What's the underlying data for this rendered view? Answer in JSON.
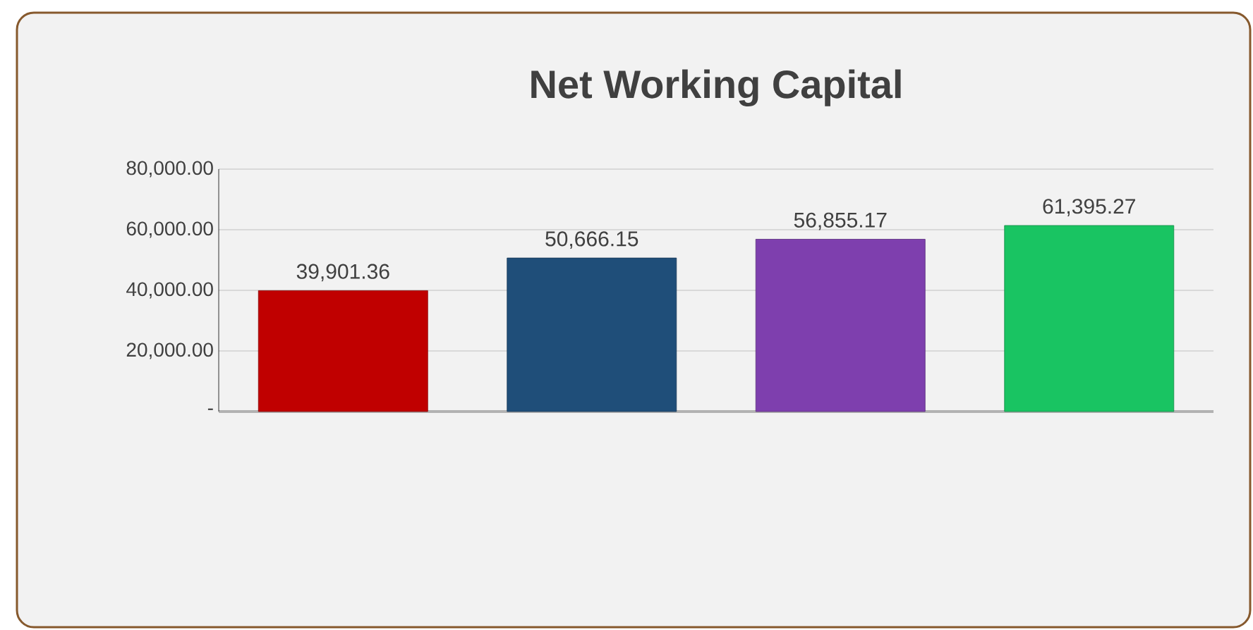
{
  "chart_data": {
    "type": "bar",
    "title": "Net Working Capital",
    "categories": [
      null,
      null,
      null,
      null
    ],
    "values": [
      39901.36,
      50666.15,
      56855.17,
      61395.27
    ],
    "colors": [
      "#c00000",
      "#1f4e79",
      "#7e3fae",
      "#19c462"
    ],
    "value_labels": [
      "39,901.36",
      "50,666.15",
      "56,855.17",
      "61,395.27"
    ],
    "ylim": [
      0,
      80000
    ],
    "yticks": [
      {
        "value": 0,
        "label": "-"
      },
      {
        "value": 20000,
        "label": "20,000.00"
      },
      {
        "value": 40000,
        "label": "40,000.00"
      },
      {
        "value": 60000,
        "label": "60,000.00"
      },
      {
        "value": 80000,
        "label": "80,000.00"
      }
    ],
    "grid": "y"
  }
}
